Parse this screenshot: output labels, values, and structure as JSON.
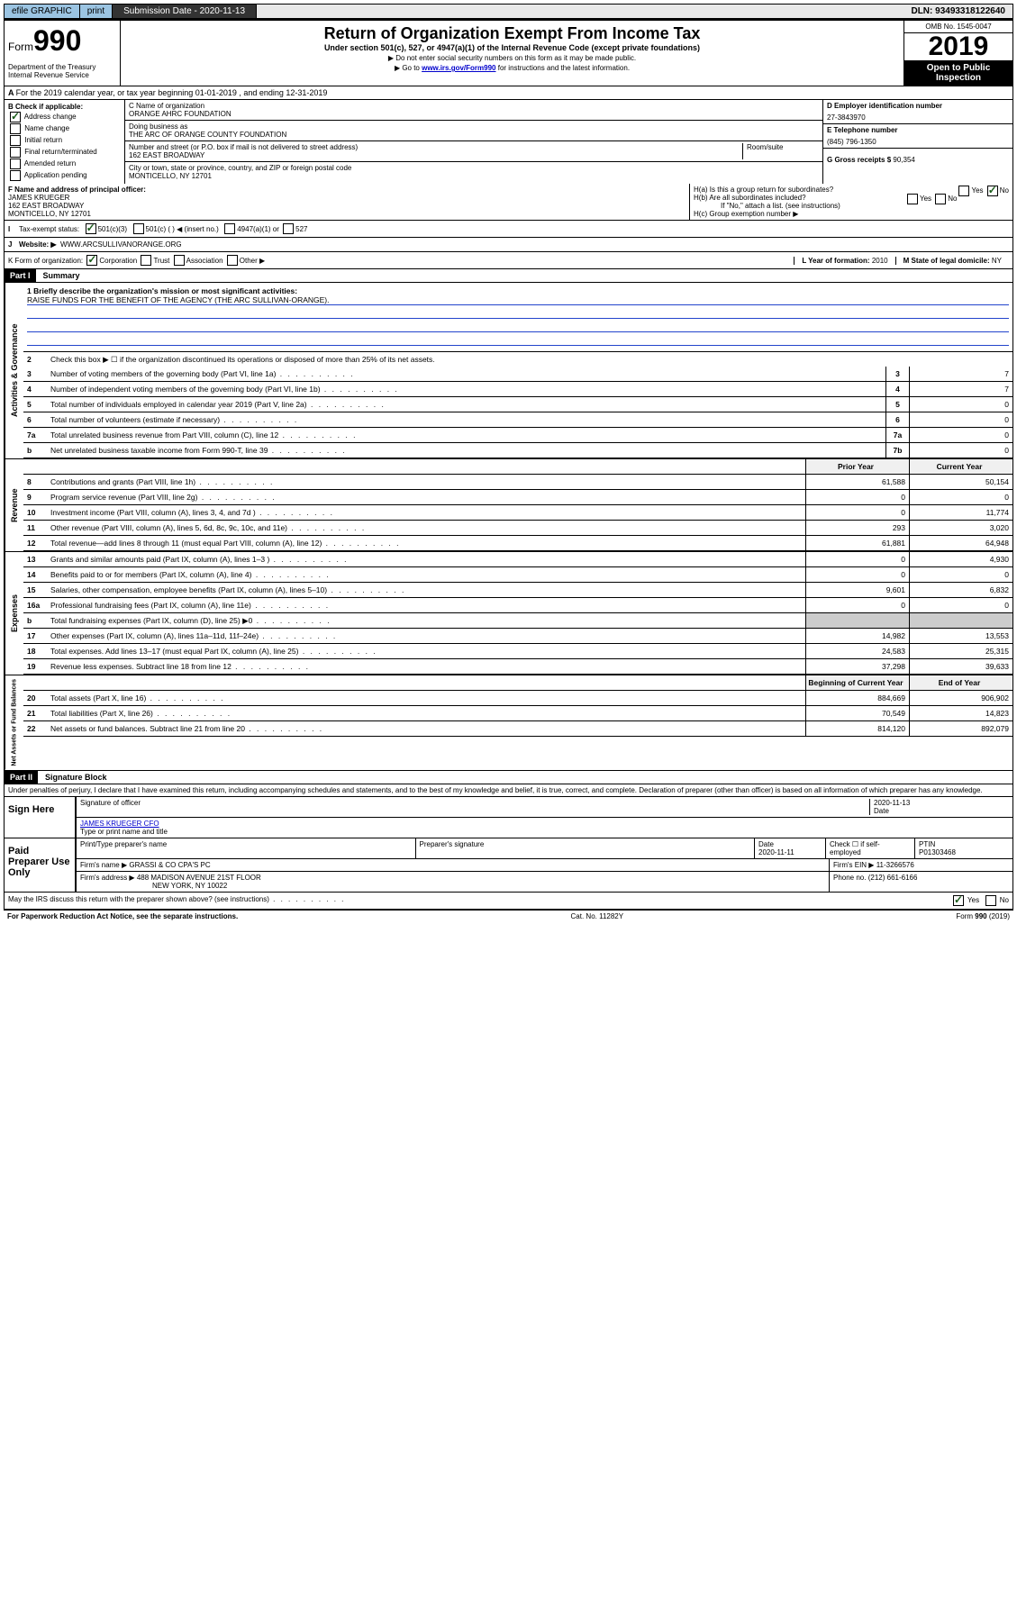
{
  "topbar": {
    "efile": "efile GRAPHIC",
    "print": "print",
    "subdate_label": "Submission Date - 2020-11-13",
    "dln": "DLN: 93493318122640"
  },
  "header": {
    "form_label": "Form",
    "form_num": "990",
    "dept": "Department of the Treasury\nInternal Revenue Service",
    "title": "Return of Organization Exempt From Income Tax",
    "subtitle": "Under section 501(c), 527, or 4947(a)(1) of the Internal Revenue Code (except private foundations)",
    "note1": "Do not enter social security numbers on this form as it may be made public.",
    "note2_pre": "Go to ",
    "note2_link": "www.irs.gov/Form990",
    "note2_post": " for instructions and the latest information.",
    "omb": "OMB No. 1545-0047",
    "year": "2019",
    "inspection": "Open to Public Inspection"
  },
  "rowA": "For the 2019 calendar year, or tax year beginning 01-01-2019   , and ending 12-31-2019",
  "sectionB": {
    "label": "B Check if applicable:",
    "items": [
      "Address change",
      "Name change",
      "Initial return",
      "Final return/terminated",
      "Amended return",
      "Application pending"
    ],
    "checked_idx": 0
  },
  "sectionC": {
    "name_label": "C Name of organization",
    "name": "ORANGE AHRC FOUNDATION",
    "dba_label": "Doing business as",
    "dba": "THE ARC OF ORANGE COUNTY FOUNDATION",
    "addr_label": "Number and street (or P.O. box if mail is not delivered to street address)",
    "room_label": "Room/suite",
    "addr": "162 EAST BROADWAY",
    "city_label": "City or town, state or province, country, and ZIP or foreign postal code",
    "city": "MONTICELLO, NY  12701"
  },
  "sectionD": {
    "label": "D Employer identification number",
    "value": "27-3843970"
  },
  "sectionE": {
    "label": "E Telephone number",
    "value": "(845) 796-1350"
  },
  "sectionG": {
    "label": "G Gross receipts $",
    "value": "90,354"
  },
  "sectionF": {
    "label": "F  Name and address of principal officer:",
    "name": "JAMES KRUEGER",
    "addr": "162 EAST BROADWAY",
    "city": "MONTICELLO, NY  12701"
  },
  "sectionH": {
    "a": "H(a)  Is this a group return for subordinates?",
    "b": "H(b)  Are all subordinates included?",
    "b_note": "If \"No,\" attach a list. (see instructions)",
    "c": "H(c)  Group exemption number ▶"
  },
  "sectionI": {
    "label": "Tax-exempt status:",
    "opt1": "501(c)(3)",
    "opt2": "501(c) (  ) ◀ (insert no.)",
    "opt3": "4947(a)(1) or",
    "opt4": "527"
  },
  "sectionJ": {
    "label": "Website: ▶",
    "value": "WWW.ARCSULLIVANORANGE.ORG"
  },
  "sectionK": {
    "label": "K Form of organization:",
    "opts": [
      "Corporation",
      "Trust",
      "Association",
      "Other ▶"
    ]
  },
  "sectionL": {
    "label": "L Year of formation:",
    "value": "2010"
  },
  "sectionM": {
    "label": "M State of legal domicile:",
    "value": "NY"
  },
  "part1": {
    "header": "Part I",
    "title": "Summary",
    "line1_label": "1  Briefly describe the organization's mission or most significant activities:",
    "mission": "RAISE FUNDS FOR THE BENEFIT OF THE AGENCY (THE ARC SULLIVAN-ORANGE).",
    "line2": "Check this box ▶ ☐  if the organization discontinued its operations or disposed of more than 25% of its net assets.",
    "vert_gov": "Activities & Governance",
    "vert_rev": "Revenue",
    "vert_exp": "Expenses",
    "vert_net": "Net Assets or Fund Balances",
    "col_prior": "Prior Year",
    "col_curr": "Current Year",
    "col_begin": "Beginning of Current Year",
    "col_end": "End of Year",
    "gov_lines": [
      {
        "n": "3",
        "t": "Number of voting members of the governing body (Part VI, line 1a)",
        "box": "3",
        "v": "7"
      },
      {
        "n": "4",
        "t": "Number of independent voting members of the governing body (Part VI, line 1b)",
        "box": "4",
        "v": "7"
      },
      {
        "n": "5",
        "t": "Total number of individuals employed in calendar year 2019 (Part V, line 2a)",
        "box": "5",
        "v": "0"
      },
      {
        "n": "6",
        "t": "Total number of volunteers (estimate if necessary)",
        "box": "6",
        "v": "0"
      },
      {
        "n": "7a",
        "t": "Total unrelated business revenue from Part VIII, column (C), line 12",
        "box": "7a",
        "v": "0"
      },
      {
        "n": "b",
        "t": "Net unrelated business taxable income from Form 990-T, line 39",
        "box": "7b",
        "v": "0"
      }
    ],
    "rev_lines": [
      {
        "n": "8",
        "t": "Contributions and grants (Part VIII, line 1h)",
        "p": "61,588",
        "c": "50,154"
      },
      {
        "n": "9",
        "t": "Program service revenue (Part VIII, line 2g)",
        "p": "0",
        "c": "0"
      },
      {
        "n": "10",
        "t": "Investment income (Part VIII, column (A), lines 3, 4, and 7d )",
        "p": "0",
        "c": "11,774"
      },
      {
        "n": "11",
        "t": "Other revenue (Part VIII, column (A), lines 5, 6d, 8c, 9c, 10c, and 11e)",
        "p": "293",
        "c": "3,020"
      },
      {
        "n": "12",
        "t": "Total revenue—add lines 8 through 11 (must equal Part VIII, column (A), line 12)",
        "p": "61,881",
        "c": "64,948"
      }
    ],
    "exp_lines": [
      {
        "n": "13",
        "t": "Grants and similar amounts paid (Part IX, column (A), lines 1–3 )",
        "p": "0",
        "c": "4,930"
      },
      {
        "n": "14",
        "t": "Benefits paid to or for members (Part IX, column (A), line 4)",
        "p": "0",
        "c": "0"
      },
      {
        "n": "15",
        "t": "Salaries, other compensation, employee benefits (Part IX, column (A), lines 5–10)",
        "p": "9,601",
        "c": "6,832"
      },
      {
        "n": "16a",
        "t": "Professional fundraising fees (Part IX, column (A), line 11e)",
        "p": "0",
        "c": "0"
      },
      {
        "n": "b",
        "t": "Total fundraising expenses (Part IX, column (D), line 25) ▶0",
        "p": "",
        "c": ""
      },
      {
        "n": "17",
        "t": "Other expenses (Part IX, column (A), lines 11a–11d, 11f–24e)",
        "p": "14,982",
        "c": "13,553"
      },
      {
        "n": "18",
        "t": "Total expenses. Add lines 13–17 (must equal Part IX, column (A), line 25)",
        "p": "24,583",
        "c": "25,315"
      },
      {
        "n": "19",
        "t": "Revenue less expenses. Subtract line 18 from line 12",
        "p": "37,298",
        "c": "39,633"
      }
    ],
    "net_lines": [
      {
        "n": "20",
        "t": "Total assets (Part X, line 16)",
        "p": "884,669",
        "c": "906,902"
      },
      {
        "n": "21",
        "t": "Total liabilities (Part X, line 26)",
        "p": "70,549",
        "c": "14,823"
      },
      {
        "n": "22",
        "t": "Net assets or fund balances. Subtract line 21 from line 20",
        "p": "814,120",
        "c": "892,079"
      }
    ]
  },
  "part2": {
    "header": "Part II",
    "title": "Signature Block",
    "perjury": "Under penalties of perjury, I declare that I have examined this return, including accompanying schedules and statements, and to the best of my knowledge and belief, it is true, correct, and complete. Declaration of preparer (other than officer) is based on all information of which preparer has any knowledge.",
    "sign_here": "Sign Here",
    "sig_officer": "Signature of officer",
    "sig_date": "2020-11-13",
    "date_label": "Date",
    "officer_name": "JAMES KRUEGER  CFO",
    "type_name": "Type or print name and title",
    "paid_label": "Paid Preparer Use Only",
    "prep_name_label": "Print/Type preparer's name",
    "prep_sig_label": "Preparer's signature",
    "prep_date_label": "Date",
    "prep_date": "2020-11-11",
    "check_self": "Check ☐ if self-employed",
    "ptin_label": "PTIN",
    "ptin": "P01303468",
    "firm_name_label": "Firm's name    ▶",
    "firm_name": "GRASSI & CO CPA'S PC",
    "firm_ein_label": "Firm's EIN ▶",
    "firm_ein": "11-3266576",
    "firm_addr_label": "Firm's address ▶",
    "firm_addr": "488 MADISON AVENUE 21ST FLOOR",
    "firm_city": "NEW YORK, NY  10022",
    "phone_label": "Phone no.",
    "phone": "(212) 661-6166",
    "discuss": "May the IRS discuss this return with the preparer shown above? (see instructions)"
  },
  "footer": {
    "paperwork": "For Paperwork Reduction Act Notice, see the separate instructions.",
    "cat": "Cat. No. 11282Y",
    "form": "Form 990 (2019)"
  }
}
